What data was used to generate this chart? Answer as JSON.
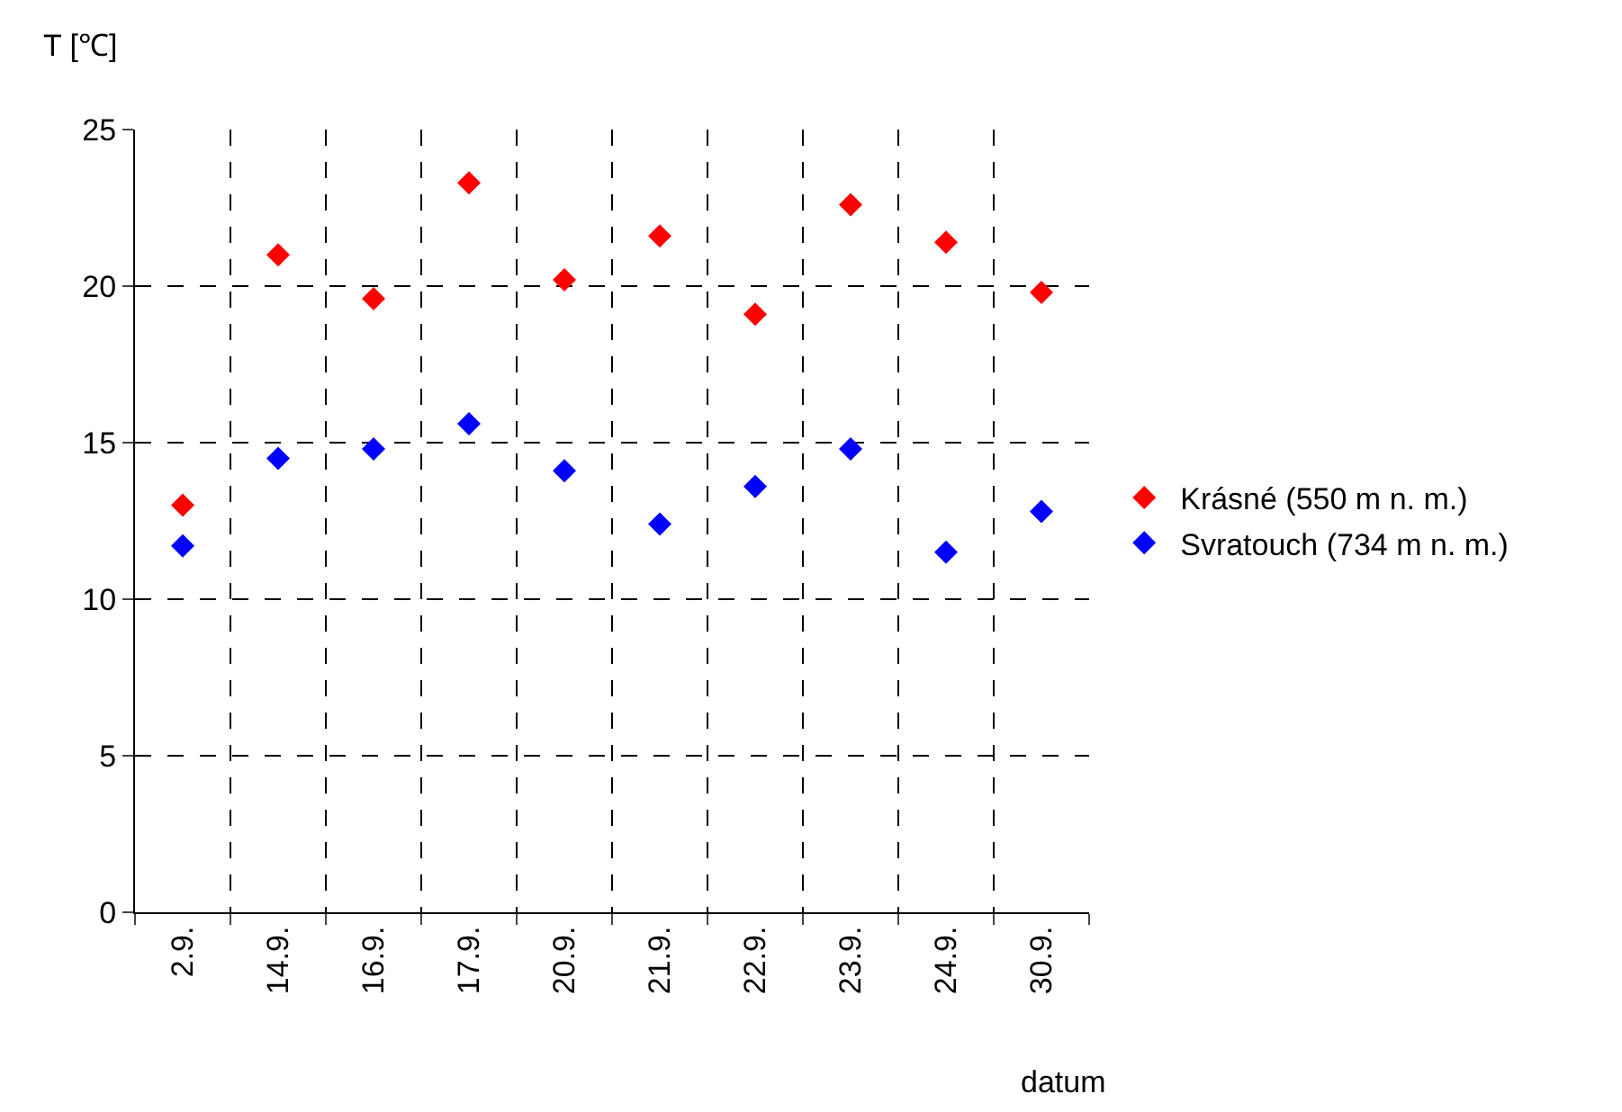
{
  "chart_data": {
    "type": "scatter",
    "xlabel": "datum",
    "ylabel": "T [℃]",
    "categories": [
      "2.9.",
      "14.9.",
      "16.9.",
      "17.9.",
      "20.9.",
      "21.9.",
      "22.9.",
      "23.9.",
      "24.9.",
      "30.9."
    ],
    "series": [
      {
        "name": "Krásné (550 m n. m.)",
        "color": "#ff0000",
        "values": [
          13.0,
          21.0,
          19.6,
          23.3,
          20.2,
          21.6,
          19.1,
          22.6,
          21.4,
          19.8
        ]
      },
      {
        "name": "Svratouch (734 m n. m.)",
        "color": "#0000ff",
        "values": [
          11.7,
          14.5,
          14.8,
          15.6,
          14.1,
          12.4,
          13.6,
          14.8,
          11.5,
          12.8
        ]
      }
    ],
    "ylim": [
      0,
      25
    ],
    "yticks": [
      0,
      5,
      10,
      15,
      20,
      25
    ],
    "grid": true,
    "legend": "right",
    "marker": "diamond"
  }
}
